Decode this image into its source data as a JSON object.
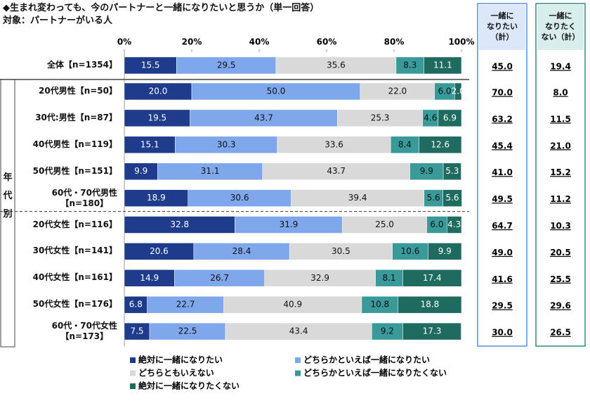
{
  "chart_data": {
    "type": "stacked-bar-horizontal",
    "title": "◆生まれ変わっても、今のパートナーと一緒になりたいと思うか（単一回答）",
    "subtitle": "対象：パートナーがいる人",
    "group_label": "年代別",
    "categories": [
      "全体【n=1354】",
      "20代男性【n=50】",
      "30代:男性【n=87】",
      "40代男性【n=119】",
      "50代男性【n=151】",
      "60代・70代男性\n【n=180】",
      "20代女性【n=116】",
      "30代女性【n=141】",
      "40代女性【n=161】",
      "50代女性【n=176】",
      "60代・70代女性\n【n=173】"
    ],
    "xlim": [
      0,
      100
    ],
    "xticks": [
      {
        "value": 0,
        "label": "0%"
      },
      {
        "value": 20,
        "label": "20%"
      },
      {
        "value": 40,
        "label": "40%"
      },
      {
        "value": 60,
        "label": "60%"
      },
      {
        "value": 80,
        "label": "80%"
      },
      {
        "value": 100,
        "label": "100%"
      }
    ],
    "series": [
      {
        "name": "絶対に一緒になりたい",
        "color": "#1f3c8c",
        "values": [
          15.5,
          20.0,
          19.5,
          15.1,
          9.9,
          18.9,
          32.8,
          20.6,
          14.9,
          6.8,
          7.5
        ],
        "value_labels": [
          "15.5",
          "20.0",
          "19.5",
          "15.1",
          "9.9",
          "18.9",
          "32.8",
          "20.6",
          "14.9",
          "6.8",
          "7.5"
        ]
      },
      {
        "name": "どちらかといえば一緒になりたい",
        "color": "#7fa8ec",
        "values": [
          29.5,
          50.0,
          43.7,
          30.3,
          31.1,
          30.6,
          31.9,
          28.4,
          26.7,
          22.7,
          22.5
        ],
        "value_labels": [
          "29.5",
          "50.0",
          "43.7",
          "30.3",
          "31.1",
          "30.6",
          "31.9",
          "28.4",
          "26.7",
          "22.7",
          "22.5"
        ]
      },
      {
        "name": "どちらともいえない",
        "color": "#d9d9d9",
        "values": [
          35.6,
          22.0,
          25.3,
          33.6,
          43.7,
          39.4,
          25.0,
          30.5,
          32.9,
          40.9,
          43.4
        ],
        "value_labels": [
          "35.6",
          "22.0",
          "25.3",
          "33.6",
          "43.7",
          "39.4",
          "25.0",
          "30.5",
          "32.9",
          "40.9",
          "43.4"
        ]
      },
      {
        "name": "どちらかといえば一緒になりたくない",
        "color": "#3a9a9a",
        "values": [
          8.3,
          6.0,
          4.6,
          8.4,
          9.9,
          5.6,
          6.0,
          10.6,
          8.1,
          10.8,
          9.2
        ],
        "value_labels": [
          "8.3",
          "6.0",
          "4.6",
          "8.4",
          "9.9",
          "5.6",
          "6.0",
          "10.6",
          "8.1",
          "10.8",
          "9.2"
        ]
      },
      {
        "name": "絶対に一緒になりたくない",
        "color": "#206b60",
        "values": [
          11.1,
          2.0,
          6.9,
          12.6,
          5.3,
          5.6,
          4.3,
          9.9,
          17.4,
          18.8,
          17.3
        ],
        "value_labels": [
          "11.1",
          "2.0",
          "6.9",
          "12.6",
          "5.3",
          "5.6",
          "4.3",
          "9.9",
          "17.4",
          "18.8",
          "17.3"
        ]
      }
    ],
    "summary_columns": [
      {
        "header": "一緒に\nなりたい\n（計）",
        "color": "#5b8fd9",
        "values": [
          45.0,
          70.0,
          63.2,
          45.4,
          41.0,
          49.5,
          64.7,
          49.0,
          41.6,
          29.5,
          30.0
        ],
        "value_labels": [
          "45.0",
          "70.0",
          "63.2",
          "45.4",
          "41.0",
          "49.5",
          "64.7",
          "49.0",
          "41.6",
          "29.5",
          "30.0"
        ]
      },
      {
        "header": "一緒に\nなりたく\nない（計）",
        "color": "#2e8b84",
        "values": [
          19.4,
          8.0,
          11.5,
          21.0,
          15.2,
          11.2,
          10.3,
          20.5,
          25.5,
          29.6,
          26.5
        ],
        "value_labels": [
          "19.4",
          "8.0",
          "11.5",
          "21.0",
          "15.2",
          "11.2",
          "10.3",
          "20.5",
          "25.5",
          "29.6",
          "26.5"
        ]
      }
    ]
  }
}
